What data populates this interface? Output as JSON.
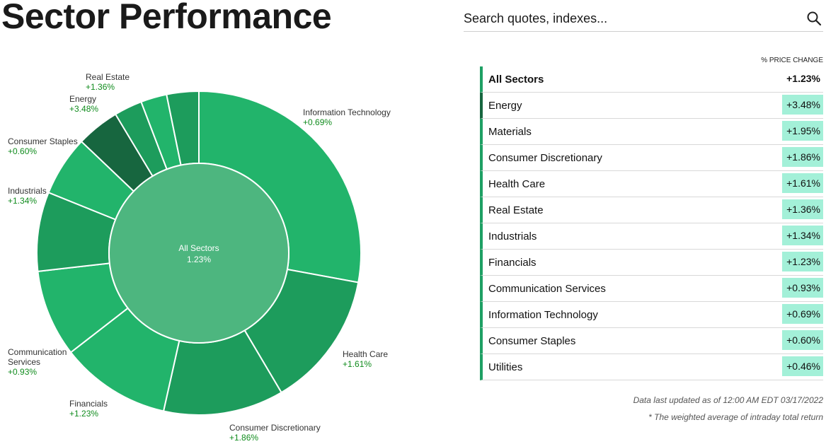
{
  "page_title": "Sector Performance",
  "search": {
    "placeholder": "Search quotes, indexes..."
  },
  "table": {
    "column_header": "% PRICE CHANGE",
    "rows": [
      {
        "name": "All Sectors",
        "change": "+1.23%",
        "bar_color": "#1ea064"
      },
      {
        "name": "Energy",
        "change": "+3.48%",
        "bar_color": "#17663f"
      },
      {
        "name": "Materials",
        "change": "+1.95%",
        "bar_color": "#1ea064"
      },
      {
        "name": "Consumer Discretionary",
        "change": "+1.86%",
        "bar_color": "#1ea064"
      },
      {
        "name": "Health Care",
        "change": "+1.61%",
        "bar_color": "#1ea064"
      },
      {
        "name": "Real Estate",
        "change": "+1.36%",
        "bar_color": "#1ea064"
      },
      {
        "name": "Industrials",
        "change": "+1.34%",
        "bar_color": "#1ea064"
      },
      {
        "name": "Financials",
        "change": "+1.23%",
        "bar_color": "#1ea064"
      },
      {
        "name": "Communication Services",
        "change": "+0.93%",
        "bar_color": "#1ea064"
      },
      {
        "name": "Information Technology",
        "change": "+0.69%",
        "bar_color": "#1ea064"
      },
      {
        "name": "Consumer Staples",
        "change": "+0.60%",
        "bar_color": "#1ea064"
      },
      {
        "name": "Utilities",
        "change": "+0.46%",
        "bar_color": "#1ea064"
      }
    ]
  },
  "footnotes": {
    "updated": "Data last updated as of 12:00 AM EDT 03/17/2022",
    "note": "* The weighted average of intraday total return"
  },
  "chart_data": {
    "type": "pie",
    "style": "donut",
    "center_label": "All Sectors",
    "center_value": "1.23%",
    "center_color": "#4db67f",
    "slices": [
      {
        "name": "Information Technology",
        "label": "+0.69%",
        "value": 0.69,
        "share": 27.9,
        "color": "#22b46b"
      },
      {
        "name": "Health Care",
        "label": "+1.61%",
        "value": 1.61,
        "share": 13.6,
        "color": "#1d9c5c"
      },
      {
        "name": "Consumer Discretionary",
        "label": "+1.86%",
        "value": 1.86,
        "share": 12.0,
        "color": "#1d9c5c"
      },
      {
        "name": "Financials",
        "label": "+1.23%",
        "value": 1.23,
        "share": 11.0,
        "color": "#22b46b"
      },
      {
        "name": "Communication Services",
        "label": "+0.93%",
        "value": 0.93,
        "share": 8.7,
        "color": "#22b46b"
      },
      {
        "name": "Industrials",
        "label": "+1.34%",
        "value": 1.34,
        "share": 7.9,
        "color": "#1d9c5c"
      },
      {
        "name": "Consumer Staples",
        "label": "+0.60%",
        "value": 0.6,
        "share": 6.0,
        "color": "#22b46b"
      },
      {
        "name": "Energy",
        "label": "+3.48%",
        "value": 3.48,
        "share": 4.3,
        "color": "#17663f"
      },
      {
        "name": "Materials",
        "label": "",
        "value": 1.95,
        "share": 2.8,
        "color": "#1d9c5c"
      },
      {
        "name": "Real Estate",
        "label": "+1.36%",
        "value": 1.36,
        "share": 2.6,
        "color": "#22b46b"
      },
      {
        "name": "Utilities",
        "label": "",
        "value": 0.46,
        "share": 3.2,
        "color": "#1d9c5c"
      }
    ],
    "callouts": [
      {
        "name": "Information Technology",
        "value": "+0.69%"
      },
      {
        "name": "Health Care",
        "value": "+1.61%"
      },
      {
        "name": "Consumer Discretionary",
        "value": "+1.86%"
      },
      {
        "name": "Financials",
        "value": "+1.23%"
      },
      {
        "name": "Communication\nServices",
        "value": "+0.93%"
      },
      {
        "name": "Industrials",
        "value": "+1.34%"
      },
      {
        "name": "Consumer Staples",
        "value": "+0.60%"
      },
      {
        "name": "Energy",
        "value": "+3.48%"
      },
      {
        "name": "Real Estate",
        "value": "+1.36%"
      }
    ],
    "value_color": "#118c1e"
  }
}
